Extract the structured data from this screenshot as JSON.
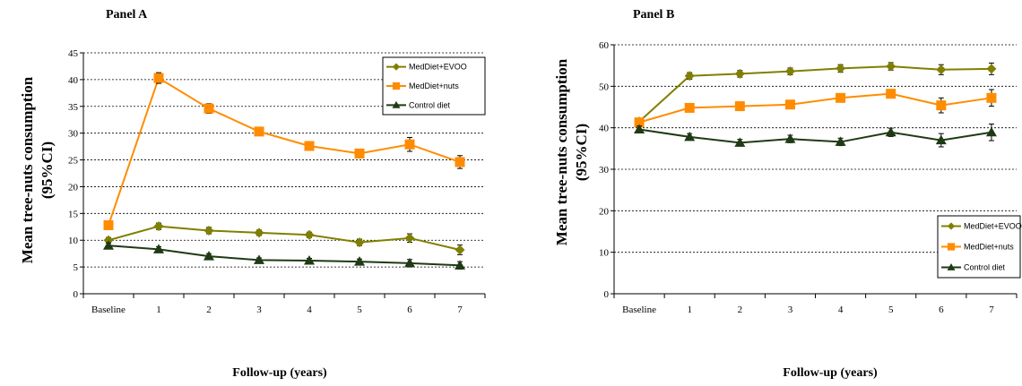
{
  "colors": {
    "evoo": "#808000",
    "nuts": "#FF8C00",
    "control": "#1F3A14",
    "grid": "#000000"
  },
  "chart_data": [
    {
      "type": "line",
      "title": "Panel A",
      "xlabel": "Follow-up (years)",
      "ylabel_lines": [
        "Mean tree-nuts consumption",
        "(95%CI)"
      ],
      "categories": [
        "Baseline",
        "1",
        "2",
        "3",
        "4",
        "5",
        "6",
        "7"
      ],
      "ylim": [
        0,
        45
      ],
      "yticks": [
        0,
        5,
        10,
        15,
        20,
        25,
        30,
        35,
        40,
        45
      ],
      "grid": "horizontal-dashed",
      "legend_position": "top-right",
      "series": [
        {
          "name": "MedDiet+EVOO",
          "marker": "diamond",
          "values": [
            10,
            12.6,
            11.8,
            11.4,
            11.0,
            9.6,
            10.4,
            8.2
          ],
          "err": [
            0.5,
            0.6,
            0.6,
            0.5,
            0.5,
            0.6,
            0.8,
            0.9
          ]
        },
        {
          "name": "MedDiet+nuts",
          "marker": "square",
          "values": [
            12.8,
            40.3,
            34.6,
            30.3,
            27.6,
            26.2,
            27.9,
            24.6
          ],
          "err": [
            0.6,
            1.0,
            0.9,
            0.7,
            0.7,
            0.8,
            1.3,
            1.2
          ]
        },
        {
          "name": "Control diet",
          "marker": "triangle",
          "values": [
            9.0,
            8.3,
            7.0,
            6.3,
            6.2,
            6.0,
            5.7,
            5.3
          ],
          "err": [
            0.5,
            0.5,
            0.5,
            0.4,
            0.4,
            0.5,
            0.7,
            0.7
          ]
        }
      ]
    },
    {
      "type": "line",
      "title": "Panel B",
      "xlabel": "Follow-up (years)",
      "ylabel_lines": [
        "Mean tree-nuts consumption",
        "(95%CI)"
      ],
      "categories": [
        "Baseline",
        "1",
        "2",
        "3",
        "4",
        "5",
        "6",
        "7"
      ],
      "ylim": [
        0,
        60
      ],
      "yticks": [
        0,
        10,
        20,
        30,
        40,
        50,
        60
      ],
      "grid": "horizontal-dashed",
      "legend_position": "bottom-right",
      "series": [
        {
          "name": "MedDiet+EVOO",
          "marker": "diamond",
          "values": [
            41.5,
            52.5,
            53.0,
            53.6,
            54.3,
            54.8,
            54.0,
            54.2
          ],
          "err": [
            0.8,
            0.8,
            0.8,
            0.8,
            0.9,
            0.9,
            1.2,
            1.4
          ]
        },
        {
          "name": "MedDiet+nuts",
          "marker": "square",
          "values": [
            41.3,
            44.8,
            45.2,
            45.6,
            47.2,
            48.2,
            45.4,
            47.2
          ],
          "err": [
            0.8,
            0.8,
            0.8,
            0.8,
            0.9,
            0.9,
            1.8,
            2.0
          ]
        },
        {
          "name": "Control diet",
          "marker": "triangle",
          "values": [
            39.6,
            37.8,
            36.4,
            37.3,
            36.6,
            38.9,
            37.0,
            38.9
          ],
          "err": [
            0.8,
            0.8,
            0.8,
            0.9,
            0.9,
            1.0,
            1.6,
            2.0
          ]
        }
      ]
    }
  ]
}
